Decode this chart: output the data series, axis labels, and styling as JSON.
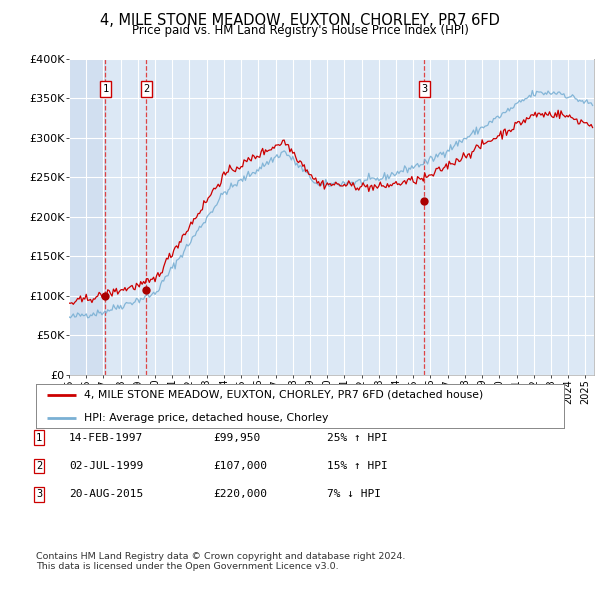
{
  "title1": "4, MILE STONE MEADOW, EUXTON, CHORLEY, PR7 6FD",
  "title2": "Price paid vs. HM Land Registry's House Price Index (HPI)",
  "ylabel_ticks": [
    "£0",
    "£50K",
    "£100K",
    "£150K",
    "£200K",
    "£250K",
    "£300K",
    "£350K",
    "£400K"
  ],
  "ytick_values": [
    0,
    50000,
    100000,
    150000,
    200000,
    250000,
    300000,
    350000,
    400000
  ],
  "xlim_start": 1995.0,
  "xlim_end": 2025.5,
  "ylim": [
    0,
    400000
  ],
  "sale_dates": [
    1997.12,
    1999.5,
    2015.64
  ],
  "sale_prices": [
    99950,
    107000,
    220000
  ],
  "sale_labels": [
    "1",
    "2",
    "3"
  ],
  "legend_line1": "4, MILE STONE MEADOW, EUXTON, CHORLEY, PR7 6FD (detached house)",
  "legend_line2": "HPI: Average price, detached house, Chorley",
  "table_rows": [
    [
      "1",
      "14-FEB-1997",
      "£99,950",
      "25% ↑ HPI"
    ],
    [
      "2",
      "02-JUL-1999",
      "£107,000",
      "15% ↑ HPI"
    ],
    [
      "3",
      "20-AUG-2015",
      "£220,000",
      "7% ↓ HPI"
    ]
  ],
  "footer": "Contains HM Land Registry data © Crown copyright and database right 2024.\nThis data is licensed under the Open Government Licence v3.0.",
  "hpi_line_color": "#7ab0d4",
  "sale_line_color": "#cc0000",
  "sale_dot_color": "#aa0000",
  "plot_bg_color": "#dce8f5",
  "grid_color": "#ffffff",
  "vline_band_color": "#c8d8ec"
}
